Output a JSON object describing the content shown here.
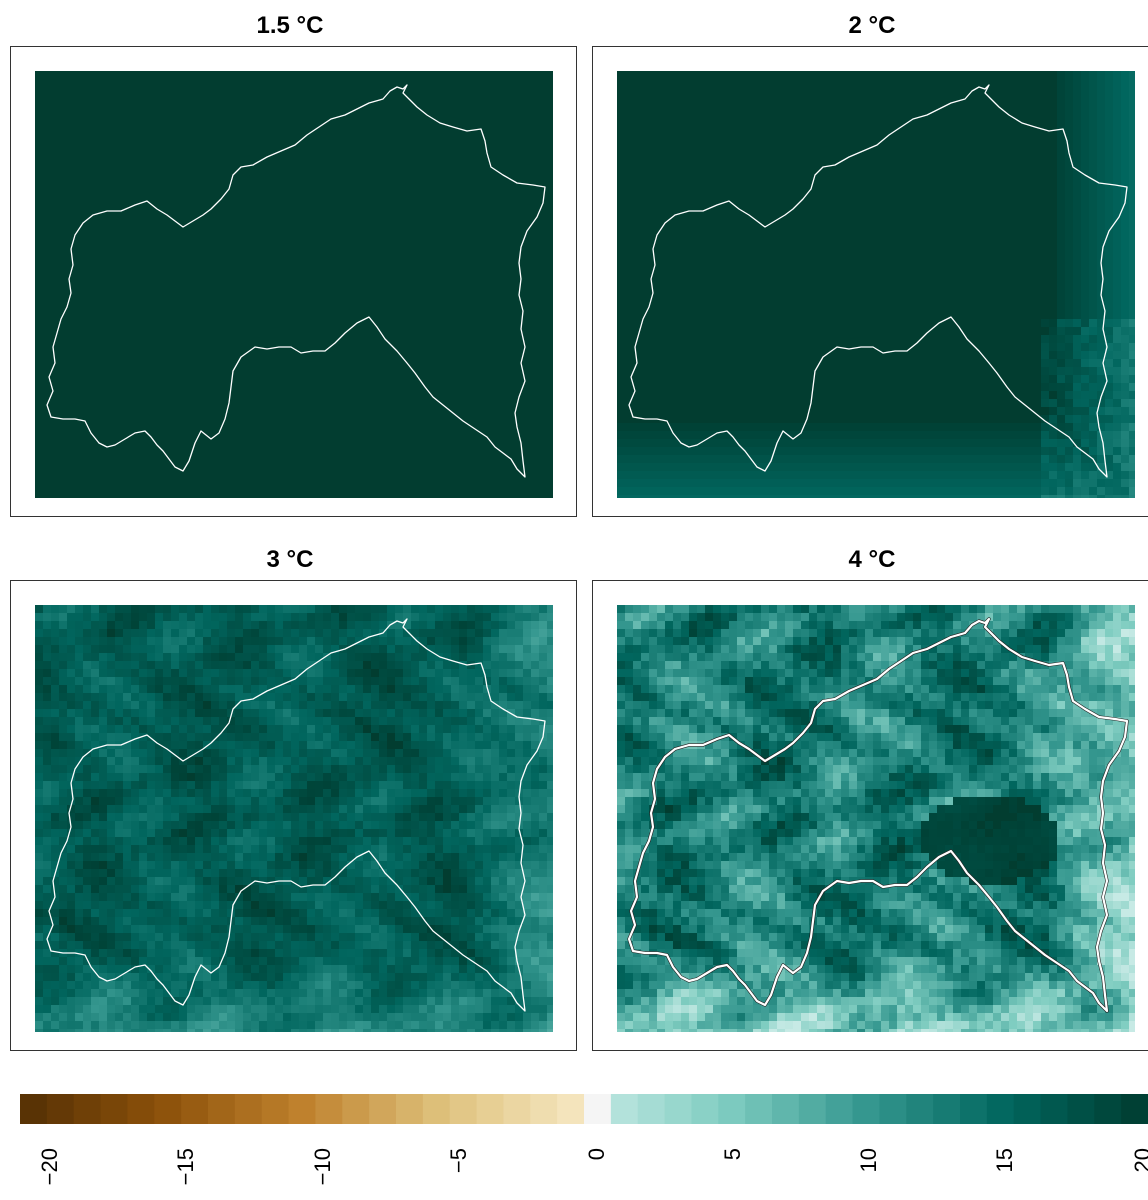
{
  "panels": [
    {
      "title": "1.5 °C",
      "intensity": 0.0
    },
    {
      "title": "2 °C",
      "intensity": 0.12
    },
    {
      "title": "3 °C",
      "intensity": 0.45
    },
    {
      "title": "4 °C",
      "intensity": 0.85
    }
  ],
  "legend": {
    "min": -20,
    "max": 20,
    "ticks": [
      "−20",
      "−15",
      "−10",
      "−5",
      "0",
      "5",
      "10",
      "15",
      "20"
    ],
    "negative_colors": [
      "#543005",
      "#8c510a",
      "#bf812d",
      "#dfc27d",
      "#f6e8c3"
    ],
    "neutral_color": "#f5f5f5",
    "positive_colors": [
      "#c7eae5",
      "#80cdc1",
      "#35978f",
      "#01665e",
      "#003c30"
    ]
  },
  "colors": {
    "outline": "#ffffff",
    "dark_fill": "#023d30"
  }
}
